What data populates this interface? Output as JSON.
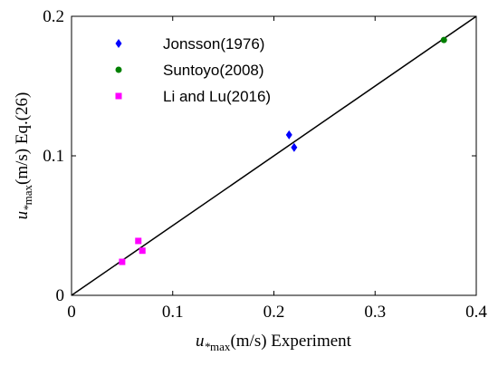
{
  "chart_data": {
    "type": "scatter",
    "xlabel": {
      "var": "u",
      "sub1": "*",
      "sub2": "max",
      "rest": "(m/s) Experiment"
    },
    "ylabel": {
      "var": "u",
      "sub1": "*",
      "sub2": "max",
      "rest": "(m/s) Eq.(26)"
    },
    "xlim": [
      0,
      0.4
    ],
    "ylim": [
      0,
      0.2
    ],
    "xticks": [
      "0",
      "0.1",
      "0.2",
      "0.3",
      "0.4"
    ],
    "yticks": [
      "0",
      "0.1",
      "0.2"
    ],
    "xtick_values": [
      0,
      0.1,
      0.2,
      0.3,
      0.4
    ],
    "ytick_values": [
      0,
      0.1,
      0.2
    ],
    "grid": false,
    "legend_position": "top-left",
    "reference_line": {
      "x": [
        0,
        0.4
      ],
      "y": [
        0,
        0.2
      ]
    },
    "series": [
      {
        "name": "Jonsson(1976)",
        "marker": "diamond",
        "color": "#0000ff",
        "x": [
          0.215,
          0.22
        ],
        "y": [
          0.115,
          0.106
        ]
      },
      {
        "name": "Suntoyo(2008)",
        "marker": "circle",
        "color": "#008000",
        "x": [
          0.368
        ],
        "y": [
          0.183
        ]
      },
      {
        "name": "Li and Lu(2016)",
        "marker": "square",
        "color": "#ff00ff",
        "x": [
          0.05,
          0.066,
          0.07
        ],
        "y": [
          0.024,
          0.039,
          0.032
        ]
      }
    ]
  }
}
